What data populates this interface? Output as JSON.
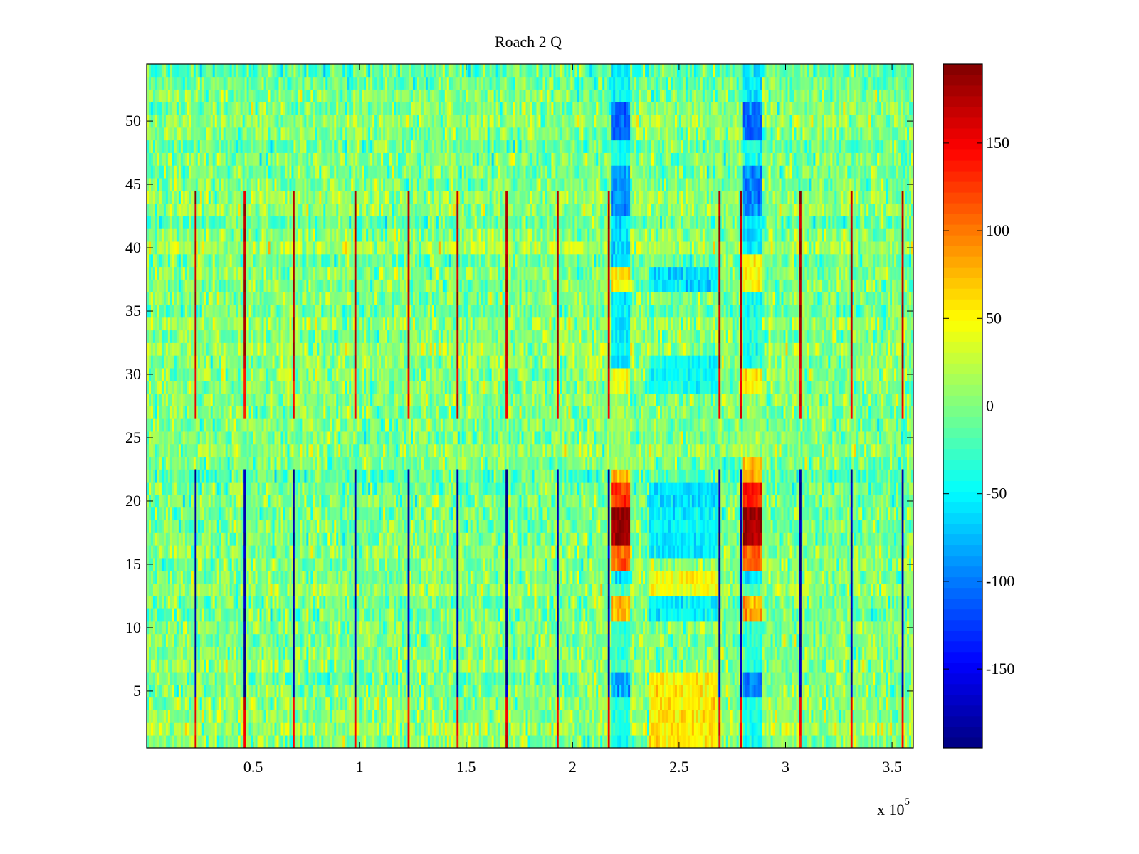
{
  "chart_data": {
    "type": "heatmap",
    "title": "Roach 2 Q",
    "xlabel": "",
    "ylabel": "",
    "xlim": [
      1,
      360000
    ],
    "ylim": [
      0.5,
      54.5
    ],
    "x_exponent_label": "x 10",
    "x_exponent_power": "5",
    "x_ticks": [
      {
        "value": 50000,
        "label": "0.5"
      },
      {
        "value": 100000,
        "label": "1"
      },
      {
        "value": 150000,
        "label": "1.5"
      },
      {
        "value": 200000,
        "label": "2"
      },
      {
        "value": 250000,
        "label": "2.5"
      },
      {
        "value": 300000,
        "label": "3"
      },
      {
        "value": 350000,
        "label": "3.5"
      }
    ],
    "y_ticks": [
      {
        "value": 5,
        "label": "5"
      },
      {
        "value": 10,
        "label": "10"
      },
      {
        "value": 15,
        "label": "15"
      },
      {
        "value": 20,
        "label": "20"
      },
      {
        "value": 25,
        "label": "25"
      },
      {
        "value": 30,
        "label": "30"
      },
      {
        "value": 35,
        "label": "35"
      },
      {
        "value": 40,
        "label": "40"
      },
      {
        "value": 45,
        "label": "45"
      },
      {
        "value": 50,
        "label": "50"
      }
    ],
    "colormap": "jet",
    "colorbar": {
      "clim": [
        -195,
        195
      ],
      "ticks": [
        {
          "value": 150,
          "label": "150"
        },
        {
          "value": 100,
          "label": "100"
        },
        {
          "value": 50,
          "label": "50"
        },
        {
          "value": 0,
          "label": "0"
        },
        {
          "value": -50,
          "label": "-50"
        },
        {
          "value": -100,
          "label": "-100"
        },
        {
          "value": -150,
          "label": "-150"
        }
      ]
    },
    "rows": 54,
    "background_value": 0,
    "impulse_columns_x": [
      23000,
      46000,
      69000,
      98000,
      123000,
      146000,
      169000,
      193000,
      217000,
      269000,
      279000,
      307000,
      331000,
      355000
    ],
    "impulse_bands": [
      {
        "rows": [
          1,
          4
        ],
        "value": 150
      },
      {
        "rows": [
          5,
          22
        ],
        "value": -180
      },
      {
        "rows": [
          27,
          30
        ],
        "value": 150
      },
      {
        "rows": [
          31,
          44
        ],
        "value": 175
      }
    ],
    "burst_regions": [
      {
        "x": [
          218500,
          227000
        ],
        "rows": [
          {
            "rows": [
              1,
              4
            ],
            "value": -40
          },
          {
            "rows": [
              5,
              6
            ],
            "value": -85
          },
          {
            "rows": [
              7,
              10
            ],
            "value": -30
          },
          {
            "rows": [
              11,
              12
            ],
            "value": 70
          },
          {
            "rows": [
              13,
              13
            ],
            "value": -20
          },
          {
            "rows": [
              14,
              14
            ],
            "value": -55
          },
          {
            "rows": [
              15,
              16
            ],
            "value": 110
          },
          {
            "rows": [
              17,
              19
            ],
            "value": 185
          },
          {
            "rows": [
              20,
              21
            ],
            "value": 130
          },
          {
            "rows": [
              22,
              22
            ],
            "value": 75
          },
          {
            "rows": [
              23,
              28
            ],
            "value": 10
          },
          {
            "rows": [
              29,
              30
            ],
            "value": 45
          },
          {
            "rows": [
              31,
              36
            ],
            "value": -55
          },
          {
            "rows": [
              37,
              38
            ],
            "value": 55
          },
          {
            "rows": [
              39,
              42
            ],
            "value": -60
          },
          {
            "rows": [
              43,
              46
            ],
            "value": -90
          },
          {
            "rows": [
              47,
              48
            ],
            "value": -40
          },
          {
            "rows": [
              49,
              51
            ],
            "value": -110
          },
          {
            "rows": [
              52,
              54
            ],
            "value": -50
          }
        ]
      },
      {
        "x": [
          280500,
          289000
        ],
        "rows": [
          {
            "rows": [
              1,
              4
            ],
            "value": -40
          },
          {
            "rows": [
              5,
              6
            ],
            "value": -95
          },
          {
            "rows": [
              7,
              10
            ],
            "value": -30
          },
          {
            "rows": [
              11,
              12
            ],
            "value": 85
          },
          {
            "rows": [
              13,
              13
            ],
            "value": -20
          },
          {
            "rows": [
              14,
              14
            ],
            "value": -55
          },
          {
            "rows": [
              15,
              16
            ],
            "value": 110
          },
          {
            "rows": [
              17,
              19
            ],
            "value": 185
          },
          {
            "rows": [
              20,
              21
            ],
            "value": 140
          },
          {
            "rows": [
              22,
              23
            ],
            "value": 80
          },
          {
            "rows": [
              24,
              28
            ],
            "value": 10
          },
          {
            "rows": [
              29,
              30
            ],
            "value": 50
          },
          {
            "rows": [
              31,
              36
            ],
            "value": -40
          },
          {
            "rows": [
              37,
              39
            ],
            "value": 50
          },
          {
            "rows": [
              40,
              42
            ],
            "value": -55
          },
          {
            "rows": [
              43,
              46
            ],
            "value": -95
          },
          {
            "rows": [
              47,
              48
            ],
            "value": -40
          },
          {
            "rows": [
              49,
              51
            ],
            "value": -105
          },
          {
            "rows": [
              52,
              54
            ],
            "value": -55
          }
        ]
      },
      {
        "x": [
          236000,
          268000
        ],
        "rows": [
          {
            "rows": [
              1,
              6
            ],
            "value": 55
          },
          {
            "rows": [
              11,
              12
            ],
            "value": -50
          },
          {
            "rows": [
              13,
              14
            ],
            "value": 45
          },
          {
            "rows": [
              16,
              17
            ],
            "value": -55
          },
          {
            "rows": [
              18,
              19
            ],
            "value": -50
          },
          {
            "rows": [
              20,
              21
            ],
            "value": -60
          },
          {
            "rows": [
              29,
              31
            ],
            "value": -45
          },
          {
            "rows": [
              37,
              38
            ],
            "value": -60
          }
        ]
      }
    ]
  }
}
